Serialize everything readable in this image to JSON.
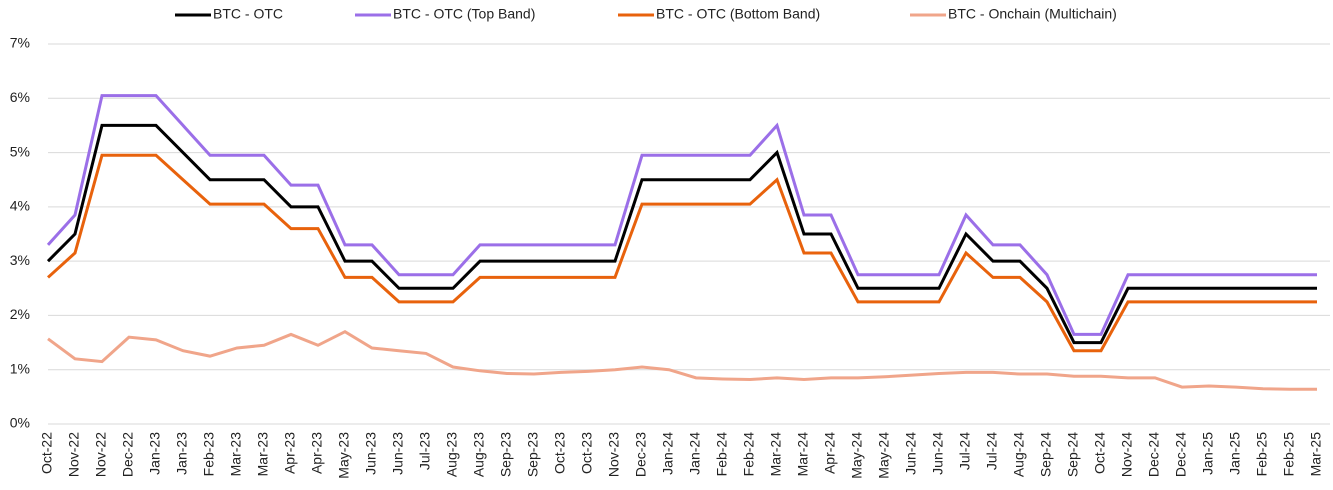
{
  "chart_data": {
    "type": "line",
    "categories": [
      "Oct-22",
      "Nov-22",
      "Nov-22",
      "Dec-22",
      "Jan-23",
      "Jan-23",
      "Feb-23",
      "Mar-23",
      "Mar-23",
      "Apr-23",
      "Apr-23",
      "May-23",
      "Jun-23",
      "Jun-23",
      "Jul-23",
      "Aug-23",
      "Aug-23",
      "Sep-23",
      "Sep-23",
      "Oct-23",
      "Oct-23",
      "Nov-23",
      "Dec-23",
      "Jan-24",
      "Jan-24",
      "Feb-24",
      "Feb-24",
      "Mar-24",
      "Mar-24",
      "Apr-24",
      "May-24",
      "May-24",
      "Jun-24",
      "Jun-24",
      "Jul-24",
      "Jul-24",
      "Aug-24",
      "Sep-24",
      "Sep-24",
      "Oct-24",
      "Nov-24",
      "Dec-24",
      "Dec-24",
      "Jan-25",
      "Jan-25",
      "Feb-25",
      "Feb-25",
      "Mar-25"
    ],
    "series": [
      {
        "name": "BTC - OTC",
        "color": "#000000",
        "values": [
          3.0,
          3.5,
          5.5,
          5.5,
          5.5,
          5.0,
          4.5,
          4.5,
          4.5,
          4.0,
          4.0,
          3.0,
          3.0,
          2.5,
          2.5,
          2.5,
          3.0,
          3.0,
          3.0,
          3.0,
          3.0,
          3.0,
          4.5,
          4.5,
          4.5,
          4.5,
          4.5,
          5.0,
          3.5,
          3.5,
          2.5,
          2.5,
          2.5,
          2.5,
          3.5,
          3.0,
          3.0,
          2.5,
          1.5,
          1.5,
          2.5,
          2.5,
          2.5,
          2.5,
          2.5,
          2.5,
          2.5,
          2.5
        ]
      },
      {
        "name": "BTC - OTC (Top Band)",
        "color": "#9b6fe8",
        "values": [
          3.3,
          3.85,
          6.05,
          6.05,
          6.05,
          5.5,
          4.95,
          4.95,
          4.95,
          4.4,
          4.4,
          3.3,
          3.3,
          2.75,
          2.75,
          2.75,
          3.3,
          3.3,
          3.3,
          3.3,
          3.3,
          3.3,
          4.95,
          4.95,
          4.95,
          4.95,
          4.95,
          5.5,
          3.85,
          3.85,
          2.75,
          2.75,
          2.75,
          2.75,
          3.85,
          3.3,
          3.3,
          2.75,
          1.65,
          1.65,
          2.75,
          2.75,
          2.75,
          2.75,
          2.75,
          2.75,
          2.75,
          2.75
        ]
      },
      {
        "name": "BTC - OTC (Bottom Band)",
        "color": "#e8620c",
        "values": [
          2.7,
          3.15,
          4.95,
          4.95,
          4.95,
          4.5,
          4.05,
          4.05,
          4.05,
          3.6,
          3.6,
          2.7,
          2.7,
          2.25,
          2.25,
          2.25,
          2.7,
          2.7,
          2.7,
          2.7,
          2.7,
          2.7,
          4.05,
          4.05,
          4.05,
          4.05,
          4.05,
          4.5,
          3.15,
          3.15,
          2.25,
          2.25,
          2.25,
          2.25,
          3.15,
          2.7,
          2.7,
          2.25,
          1.35,
          1.35,
          2.25,
          2.25,
          2.25,
          2.25,
          2.25,
          2.25,
          2.25,
          2.25
        ]
      },
      {
        "name": "BTC - Onchain (Multichain)",
        "color": "#f0a58a",
        "values": [
          1.57,
          1.2,
          1.15,
          1.6,
          1.55,
          1.35,
          1.25,
          1.4,
          1.45,
          1.65,
          1.45,
          1.7,
          1.4,
          1.35,
          1.3,
          1.05,
          0.98,
          0.93,
          0.92,
          0.95,
          0.97,
          1.0,
          1.05,
          1.0,
          0.85,
          0.83,
          0.82,
          0.85,
          0.82,
          0.85,
          0.85,
          0.87,
          0.9,
          0.93,
          0.95,
          0.95,
          0.92,
          0.92,
          0.88,
          0.88,
          0.85,
          0.85,
          0.68,
          0.7,
          0.68,
          0.65,
          0.64,
          0.64
        ]
      }
    ],
    "ylim": [
      0,
      7
    ],
    "yticks": [
      {
        "value": 0,
        "label": "0%"
      },
      {
        "value": 1,
        "label": "1%"
      },
      {
        "value": 2,
        "label": "2%"
      },
      {
        "value": 3,
        "label": "3%"
      },
      {
        "value": 4,
        "label": "4%"
      },
      {
        "value": 5,
        "label": "5%"
      },
      {
        "value": 6,
        "label": "6%"
      },
      {
        "value": 7,
        "label": "7%"
      }
    ],
    "grid": true,
    "legend": "top"
  }
}
